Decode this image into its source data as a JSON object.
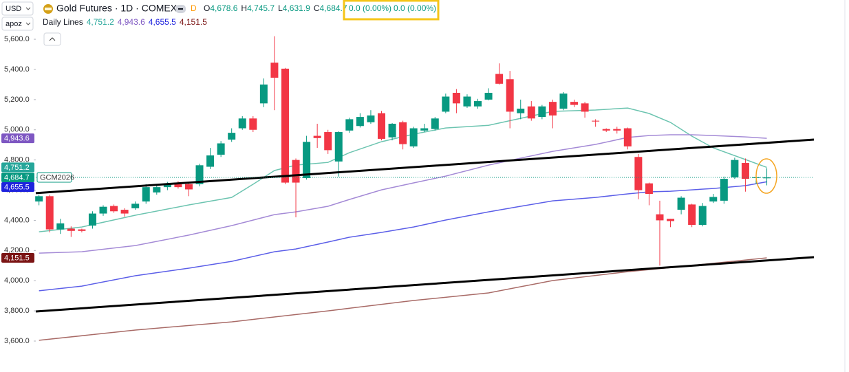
{
  "currency": "USD",
  "account": "apoz",
  "chart_data": {
    "type": "candlestick",
    "title": "Gold Futures · 1D · COMEX",
    "timeframe_badge": "D",
    "ohlc_header": [
      {
        "key": "O",
        "value": "4,678.6"
      },
      {
        "key": "H",
        "value": "4,745.7"
      },
      {
        "key": "L",
        "value": "4,631.9"
      },
      {
        "key": "C",
        "value": "4,684.7"
      }
    ],
    "change": [
      "0.0 (0.00%)",
      "0.0 (0.00%)"
    ],
    "indicator_name": "Daily Lines",
    "symbol_tag": "GCM2026",
    "up_color": "#089981",
    "down_color": "#f23645",
    "open": [
      4525,
      4560,
      4340,
      4345,
      4340,
      4365,
      4445,
      4495,
      4470,
      4480,
      4525,
      4585,
      4620,
      4640,
      4640,
      4640,
      4755,
      4835,
      4935,
      5010,
      5075,
      5175,
      5445,
      5405,
      4800,
      4680,
      4960,
      4985,
      4790,
      4995,
      5025,
      5050,
      5110,
      4950,
      5050,
      4890,
      4995,
      5005,
      5120,
      5245,
      5155,
      5155,
      5200,
      5370,
      5335,
      5110,
      5155,
      5085,
      5185,
      5140,
      5185,
      5175,
      5060,
      5005,
      5005,
      5010,
      4820,
      4645,
      4440,
      4410,
      4470,
      4505,
      4370,
      4525,
      4530,
      4685,
      4780,
      4680,
      4678.6
    ],
    "high": [
      4570,
      4570,
      4410,
      4360,
      4345,
      4460,
      4500,
      4505,
      4480,
      4525,
      4640,
      4630,
      4655,
      4660,
      4650,
      4775,
      4880,
      4925,
      5010,
      5090,
      5090,
      5340,
      5620,
      5410,
      4810,
      4960,
      5040,
      5000,
      4990,
      5080,
      5110,
      5130,
      5125,
      5045,
      5060,
      5020,
      5040,
      5085,
      5240,
      5270,
      5235,
      5205,
      5275,
      5440,
      5390,
      5200,
      5190,
      5165,
      5200,
      5250,
      5200,
      5185,
      5070,
      5010,
      5020,
      5015,
      4840,
      4650,
      4530,
      4410,
      4560,
      4510,
      4515,
      4575,
      4690,
      4815,
      4810,
      4690,
      4745.7
    ],
    "low": [
      4500,
      4320,
      4310,
      4290,
      4320,
      4345,
      4430,
      4450,
      4425,
      4470,
      4510,
      4570,
      4600,
      4610,
      4560,
      4625,
      4740,
      4820,
      4920,
      5000,
      4985,
      5150,
      5130,
      4640,
      4420,
      4670,
      4880,
      4840,
      4690,
      4980,
      5015,
      5040,
      4930,
      4930,
      4870,
      4880,
      4985,
      4995,
      5110,
      5110,
      5145,
      5140,
      5195,
      5300,
      5010,
      5070,
      5060,
      5070,
      5010,
      5130,
      5150,
      5080,
      5020,
      4985,
      4975,
      4870,
      4540,
      4500,
      4100,
      4355,
      4440,
      4355,
      4360,
      4515,
      4510,
      4675,
      4590,
      4640,
      4631.9
    ],
    "close": [
      4560,
      4340,
      4380,
      4330,
      4330,
      4445,
      4490,
      4460,
      4445,
      4510,
      4620,
      4620,
      4640,
      4620,
      4605,
      4765,
      4830,
      4910,
      4980,
      5075,
      5000,
      5300,
      5345,
      4650,
      4650,
      4920,
      4945,
      4865,
      4985,
      5070,
      5085,
      5095,
      4940,
      5040,
      4905,
      5010,
      5010,
      5075,
      5220,
      5175,
      5220,
      5190,
      5245,
      5305,
      5120,
      5140,
      5075,
      5155,
      5095,
      5240,
      5165,
      5120,
      5055,
      4995,
      4995,
      4890,
      4600,
      4575,
      4400,
      4395,
      4550,
      4370,
      4495,
      4555,
      4675,
      4800,
      4675,
      4685,
      4684.7
    ],
    "xlim": [
      -0.3,
      72.4
    ],
    "ylim": [
      3395,
      5655
    ],
    "yticks": [
      {
        "value": 3600,
        "label": "3,600.0"
      },
      {
        "value": 3800,
        "label": "3,800.0"
      },
      {
        "value": 4000,
        "label": "4,000.0"
      },
      {
        "value": 4200,
        "label": "4,200.0"
      },
      {
        "value": 4400,
        "label": "4,400.0"
      },
      {
        "value": 4600,
        "label": "4,600.0"
      },
      {
        "value": 4800,
        "label": "4,800.0"
      },
      {
        "value": 5000,
        "label": "5,000.0"
      },
      {
        "value": 5200,
        "label": "5,200.0"
      },
      {
        "value": 5400,
        "label": "5,400.0"
      },
      {
        "value": 5600,
        "label": "5,600.0"
      }
    ],
    "series": [
      {
        "color": "#6cc4b0",
        "x": [
          0,
          4,
          9,
          14,
          18,
          20,
          22,
          24,
          27,
          29,
          32,
          35,
          38,
          42,
          45,
          48,
          52,
          55,
          57,
          59,
          61,
          63,
          66,
          68
        ],
        "values": [
          4324,
          4356,
          4434,
          4502,
          4552,
          4639,
          4730,
          4766,
          4784,
          4848,
          4921,
          4971,
          5012,
          5030,
          5076,
          5122,
          5131,
          5144,
          5108,
          5049,
          4958,
          4880,
          4803,
          4751.2
        ]
      },
      {
        "color": "#a48ad6",
        "x": [
          0,
          4,
          9,
          14,
          18,
          22,
          24,
          27,
          29,
          32,
          35,
          38,
          42,
          45,
          48,
          52,
          55,
          57,
          59,
          61,
          63,
          66,
          68
        ],
        "values": [
          4183,
          4192,
          4233,
          4302,
          4365,
          4438,
          4456,
          4493,
          4538,
          4602,
          4648,
          4693,
          4766,
          4812,
          4857,
          4903,
          4949,
          4962,
          4967,
          4967,
          4962,
          4953,
          4943.6
        ]
      },
      {
        "color": "#5b5ee8",
        "x": [
          0,
          4,
          9,
          14,
          18,
          22,
          24,
          27,
          29,
          32,
          35,
          38,
          42,
          45,
          48,
          52,
          55,
          57,
          59,
          61,
          63,
          66,
          68
        ],
        "values": [
          3933,
          3964,
          4033,
          4083,
          4128,
          4192,
          4210,
          4256,
          4288,
          4320,
          4356,
          4402,
          4456,
          4493,
          4529,
          4552,
          4575,
          4589,
          4593,
          4602,
          4611,
          4630,
          4655.5
        ]
      },
      {
        "color": "#a86a66",
        "x": [
          0,
          9,
          18,
          27,
          35,
          42,
          48,
          55,
          61,
          68
        ],
        "values": [
          3605,
          3673,
          3727,
          3800,
          3869,
          3919,
          4001,
          4060,
          4101,
          4151.5
        ]
      }
    ],
    "trend_lines": [
      {
        "color": "#000000",
        "x": [
          -0.3,
          72.4
        ],
        "values": [
          4580,
          4935
        ]
      },
      {
        "color": "#000000",
        "x": [
          -0.3,
          72.4
        ],
        "values": [
          3796,
          4156
        ]
      }
    ],
    "price_tags": [
      {
        "value": 4751.2,
        "label": "4,751.2",
        "color": "#26a69a"
      },
      {
        "value": 4943.6,
        "label": "4,943.6",
        "color": "#7e57c2"
      },
      {
        "value": 4655.5,
        "label": "4,655.5",
        "color": "#1e22dd"
      },
      {
        "value": 4151.5,
        "label": "4,151.5",
        "color": "#7b1414"
      }
    ],
    "last_price": {
      "value": 4684.7,
      "label": "4,684.7",
      "color": "#089981"
    }
  }
}
